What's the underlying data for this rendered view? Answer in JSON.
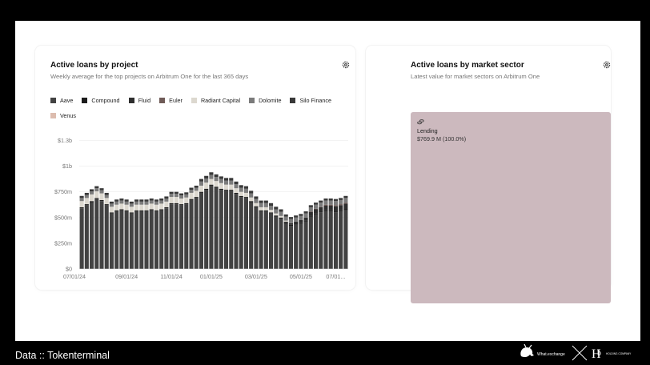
{
  "left_card": {
    "title": "Active loans by project",
    "subtitle": "Weekly average for the top projects on Arbitrum One for the last 365 days"
  },
  "right_card": {
    "title": "Active loans by market sector",
    "subtitle": "Latest value for market sectors on Arbitrum One",
    "sector_label": "Lending",
    "sector_value": "$769.9 M (100.0%)"
  },
  "footer": {
    "source": "Data :: Tokenterminal",
    "logo1_text": "What.exchange",
    "logo2_text": "HOLDING COMPANY"
  },
  "colors": {
    "Aave": "#424242",
    "Compound": "#1c1c1c",
    "Fluid": "#2e2e2e",
    "Euler": "#6f5b57",
    "Radiant Capital": "#dcd8cf",
    "Dolomite": "#7b7b7b",
    "Silo Finance": "#383838",
    "Venus": "#dcbcae",
    "lending": "#ccb9be"
  },
  "chart_data": [
    {
      "type": "bar",
      "stacked": true,
      "title": "Active loans by project",
      "subtitle": "Weekly average for the top projects on Arbitrum One for the last 365 days",
      "ylim": [
        0,
        1300000000
      ],
      "y_ticks": [
        "$0",
        "$250m",
        "$500m",
        "$750m",
        "$1b",
        "$1.3b"
      ],
      "y_tick_values": [
        0,
        250000000,
        500000000,
        750000000,
        1000000000,
        1250000000
      ],
      "x_ticks": [
        "07/01/24",
        "09/01/24",
        "11/01/24",
        "01/01/25",
        "03/01/25",
        "05/01/25",
        "07/01..."
      ],
      "x_tick_index": [
        0,
        9,
        18,
        26,
        35,
        44,
        51
      ],
      "grid": true,
      "legend_position": "top",
      "series": [
        {
          "name": "Aave",
          "values": [
            590,
            620,
            650,
            680,
            660,
            620,
            540,
            560,
            570,
            560,
            540,
            560,
            560,
            560,
            570,
            560,
            570,
            590,
            630,
            630,
            620,
            630,
            670,
            690,
            740,
            770,
            810,
            790,
            770,
            760,
            760,
            730,
            700,
            690,
            650,
            600,
            560,
            560,
            540,
            510,
            490,
            440,
            420,
            430,
            440,
            460,
            510,
            530,
            550,
            560,
            560,
            550,
            560,
            570
          ]
        },
        {
          "name": "Compound",
          "values": [
            10,
            10,
            10,
            10,
            10,
            10,
            10,
            10,
            10,
            10,
            10,
            10,
            10,
            10,
            10,
            10,
            10,
            10,
            10,
            10,
            10,
            10,
            10,
            10,
            10,
            10,
            10,
            10,
            10,
            10,
            10,
            10,
            10,
            10,
            10,
            10,
            10,
            10,
            10,
            10,
            10,
            10,
            10,
            10,
            10,
            10,
            10,
            10,
            10,
            10,
            10,
            10,
            10,
            10
          ]
        },
        {
          "name": "Fluid",
          "values": [
            0,
            0,
            0,
            0,
            0,
            0,
            0,
            0,
            0,
            0,
            0,
            0,
            0,
            0,
            0,
            0,
            0,
            0,
            0,
            0,
            0,
            0,
            0,
            0,
            0,
            0,
            0,
            0,
            0,
            0,
            0,
            0,
            0,
            0,
            0,
            0,
            0,
            0,
            0,
            0,
            0,
            10,
            15,
            20,
            25,
            30,
            35,
            40,
            40,
            45,
            45,
            50,
            50,
            55
          ]
        },
        {
          "name": "Euler",
          "values": [
            0,
            0,
            0,
            0,
            0,
            0,
            0,
            0,
            0,
            0,
            0,
            0,
            0,
            0,
            0,
            0,
            0,
            0,
            0,
            0,
            0,
            0,
            0,
            0,
            0,
            0,
            0,
            0,
            0,
            0,
            0,
            0,
            0,
            0,
            0,
            0,
            0,
            0,
            0,
            0,
            0,
            0,
            0,
            0,
            0,
            0,
            5,
            5,
            5,
            10,
            10,
            10,
            10,
            10
          ]
        },
        {
          "name": "Radiant Capital",
          "values": [
            60,
            60,
            65,
            65,
            65,
            60,
            55,
            55,
            55,
            55,
            55,
            55,
            55,
            55,
            55,
            55,
            55,
            55,
            60,
            60,
            55,
            55,
            60,
            60,
            60,
            60,
            55,
            55,
            55,
            50,
            50,
            45,
            40,
            40,
            35,
            30,
            30,
            30,
            25,
            20,
            15,
            10,
            0,
            0,
            0,
            0,
            0,
            0,
            0,
            0,
            0,
            0,
            0,
            0
          ]
        },
        {
          "name": "Dolomite",
          "values": [
            30,
            30,
            30,
            30,
            30,
            30,
            30,
            30,
            30,
            30,
            30,
            30,
            30,
            30,
            30,
            30,
            30,
            30,
            30,
            30,
            30,
            30,
            30,
            30,
            40,
            40,
            40,
            40,
            40,
            40,
            40,
            40,
            40,
            40,
            40,
            40,
            40,
            40,
            40,
            40,
            40,
            40,
            40,
            40,
            40,
            40,
            40,
            40,
            40,
            40,
            40,
            40,
            40,
            45
          ]
        },
        {
          "name": "Silo Finance",
          "values": [
            20,
            20,
            20,
            20,
            20,
            20,
            20,
            20,
            20,
            20,
            20,
            20,
            20,
            20,
            20,
            20,
            20,
            20,
            20,
            20,
            20,
            20,
            20,
            20,
            25,
            25,
            25,
            25,
            25,
            25,
            25,
            25,
            25,
            25,
            25,
            25,
            25,
            25,
            25,
            25,
            25,
            20,
            20,
            20,
            20,
            20,
            20,
            20,
            20,
            20,
            20,
            20,
            20,
            20
          ]
        },
        {
          "name": "Venus",
          "values": [
            0,
            0,
            0,
            0,
            0,
            0,
            0,
            0,
            0,
            0,
            0,
            0,
            0,
            0,
            0,
            0,
            0,
            0,
            0,
            0,
            0,
            0,
            0,
            0,
            0,
            0,
            0,
            0,
            0,
            0,
            0,
            0,
            0,
            0,
            0,
            0,
            0,
            0,
            0,
            0,
            0,
            0,
            0,
            0,
            0,
            0,
            0,
            0,
            0,
            0,
            0,
            0,
            0,
            0
          ]
        }
      ],
      "value_unit": "millions USD"
    },
    {
      "type": "treemap",
      "title": "Active loans by market sector",
      "subtitle": "Latest value for market sectors on Arbitrum One",
      "items": [
        {
          "label": "Lending",
          "value": 769.9,
          "unit": "$M",
          "percent": 100.0
        }
      ]
    }
  ]
}
